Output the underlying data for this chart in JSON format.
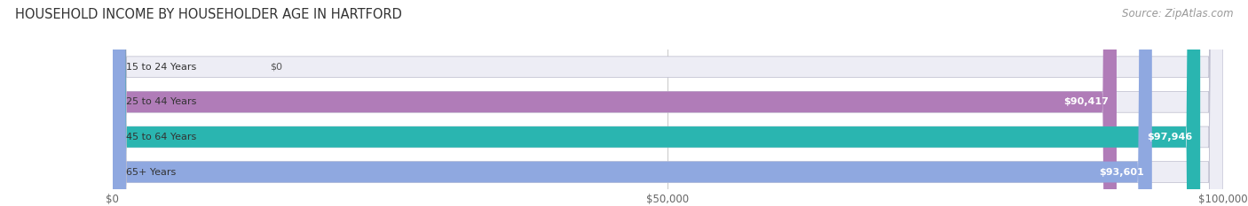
{
  "title": "HOUSEHOLD INCOME BY HOUSEHOLDER AGE IN HARTFORD",
  "source": "Source: ZipAtlas.com",
  "categories": [
    "15 to 24 Years",
    "25 to 44 Years",
    "45 to 64 Years",
    "65+ Years"
  ],
  "values": [
    0,
    90417,
    97946,
    93601
  ],
  "labels": [
    "$0",
    "$90,417",
    "$97,946",
    "$93,601"
  ],
  "bar_colors": [
    "#a8d4e6",
    "#b07cb8",
    "#2ab5b0",
    "#8fa8e0"
  ],
  "bar_bg_color": "#ededf5",
  "xlim": [
    0,
    100000
  ],
  "xticks": [
    0,
    50000,
    100000
  ],
  "xticklabels": [
    "$0",
    "$50,000",
    "$100,000"
  ],
  "title_fontsize": 10.5,
  "source_fontsize": 8.5,
  "label_fontsize": 8.0,
  "cat_fontsize": 8.0,
  "background_color": "#ffffff",
  "grid_color": "#cccccc"
}
